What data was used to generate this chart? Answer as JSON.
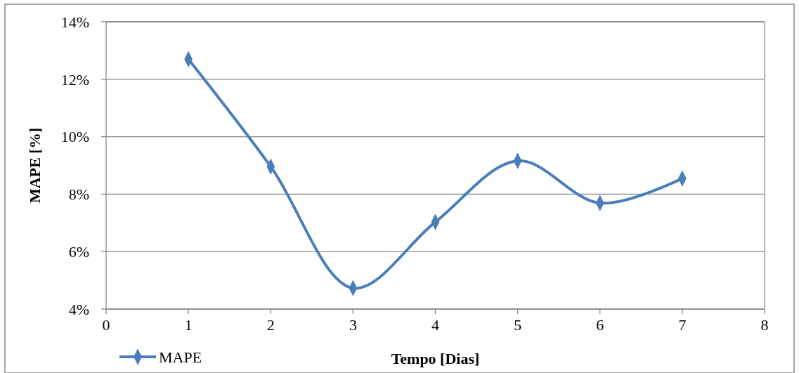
{
  "chart_data": {
    "type": "line",
    "xlabel": "Tempo [Dias]",
    "ylabel": "MAPE [%]",
    "x": [
      1,
      2,
      3,
      4,
      5,
      6,
      7
    ],
    "series": [
      {
        "name": "MAPE",
        "color": "#4a7ebb",
        "values": [
          12.7,
          8.96,
          4.73,
          7.03,
          9.16,
          7.69,
          8.55
        ]
      }
    ],
    "xlim": [
      0,
      8
    ],
    "xticks": [
      0,
      1,
      2,
      3,
      4,
      5,
      6,
      7,
      8
    ],
    "ylim": [
      4,
      14
    ],
    "yticks": [
      {
        "value": 4,
        "label": "4%"
      },
      {
        "value": 6,
        "label": "6%"
      },
      {
        "value": 8,
        "label": "8%"
      },
      {
        "value": 10,
        "label": "10%"
      },
      {
        "value": 12,
        "label": "12%"
      },
      {
        "value": 14,
        "label": "14%"
      }
    ],
    "grid": "y",
    "legend": "bottom left",
    "marker": "diamond",
    "line_style": "solid"
  }
}
